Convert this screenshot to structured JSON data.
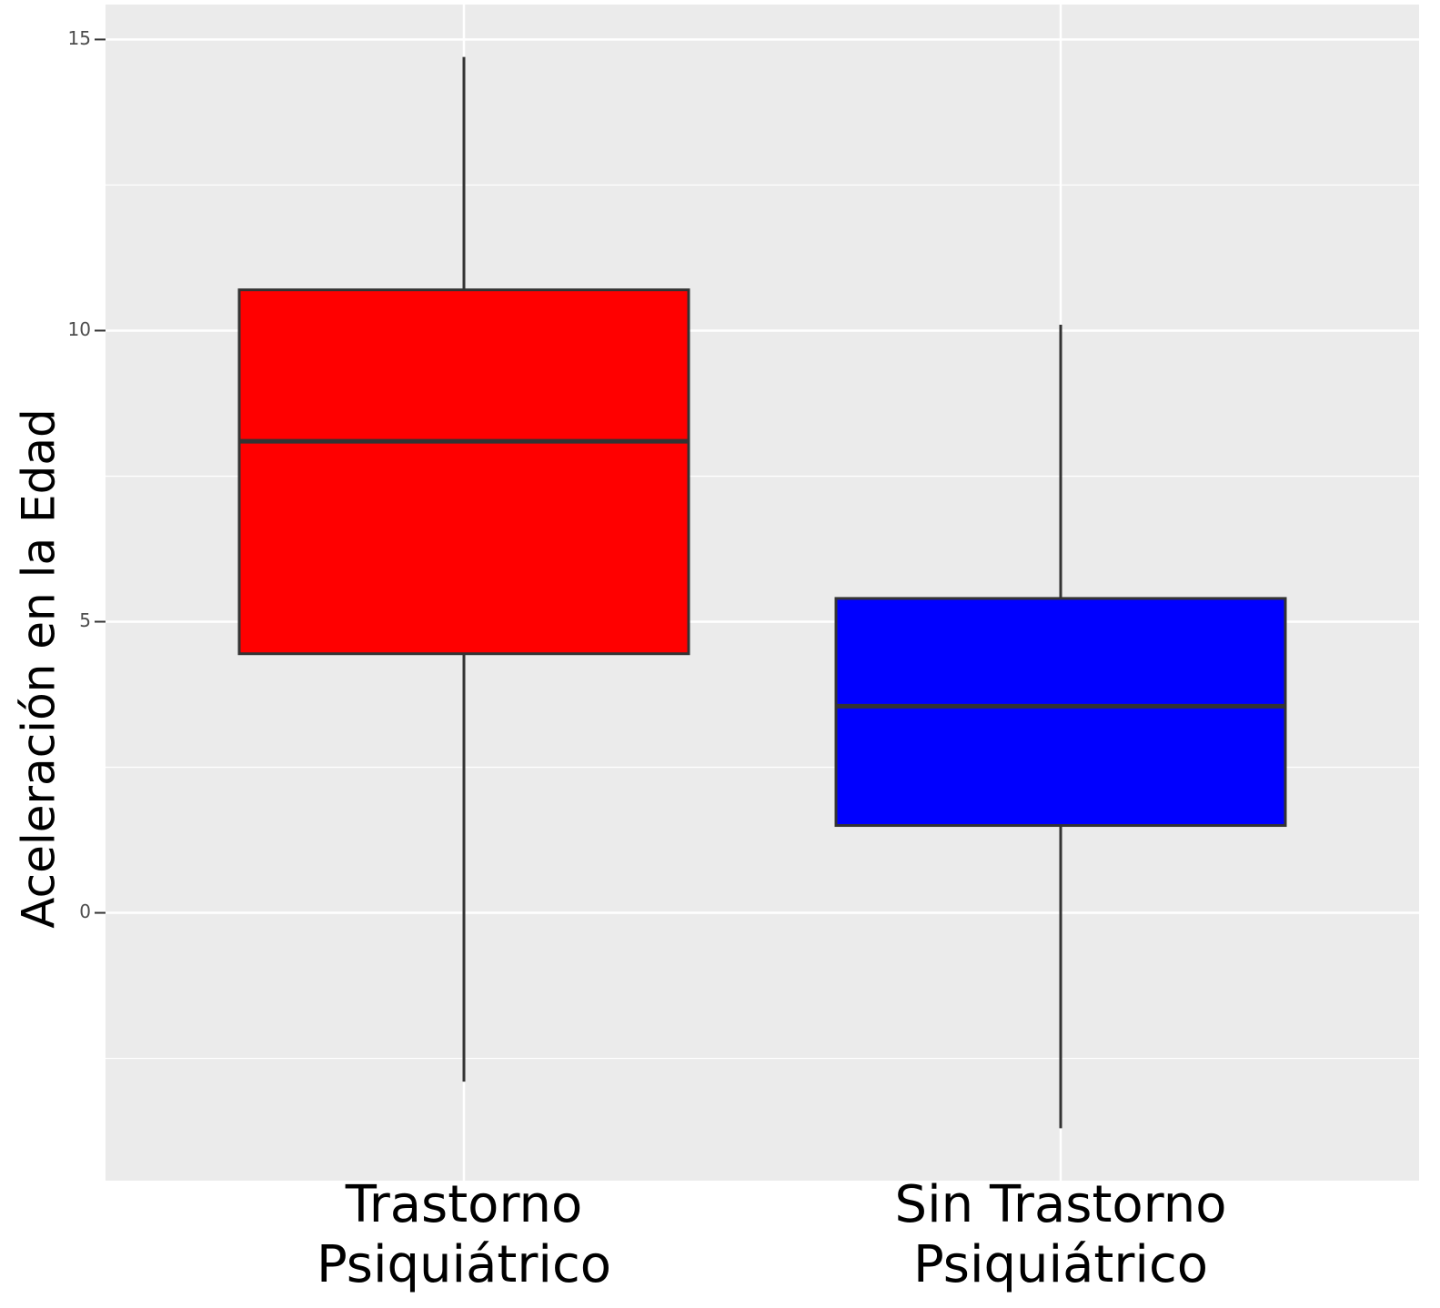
{
  "chart_data": {
    "type": "box",
    "y_label": "Aceleración en la Edad",
    "categories": [
      "Trastorno Psiquiátrico",
      "Sin Trastorno Psiquiátrico"
    ],
    "boxes": [
      {
        "whisker_low": -2.9,
        "q1": 4.45,
        "median": 8.1,
        "q3": 10.7,
        "whisker_high": 14.7,
        "color": "#ff0000"
      },
      {
        "whisker_low": -3.7,
        "q1": 1.5,
        "median": 3.55,
        "q3": 5.4,
        "whisker_high": 10.1,
        "color": "#0000ff"
      }
    ],
    "ylim": [
      -4.6,
      15.6
    ],
    "yticks": [
      0,
      5,
      10,
      15
    ],
    "y_minor_grid": [
      -2.5,
      2.5,
      7.5,
      12.5
    ],
    "grid": true
  }
}
